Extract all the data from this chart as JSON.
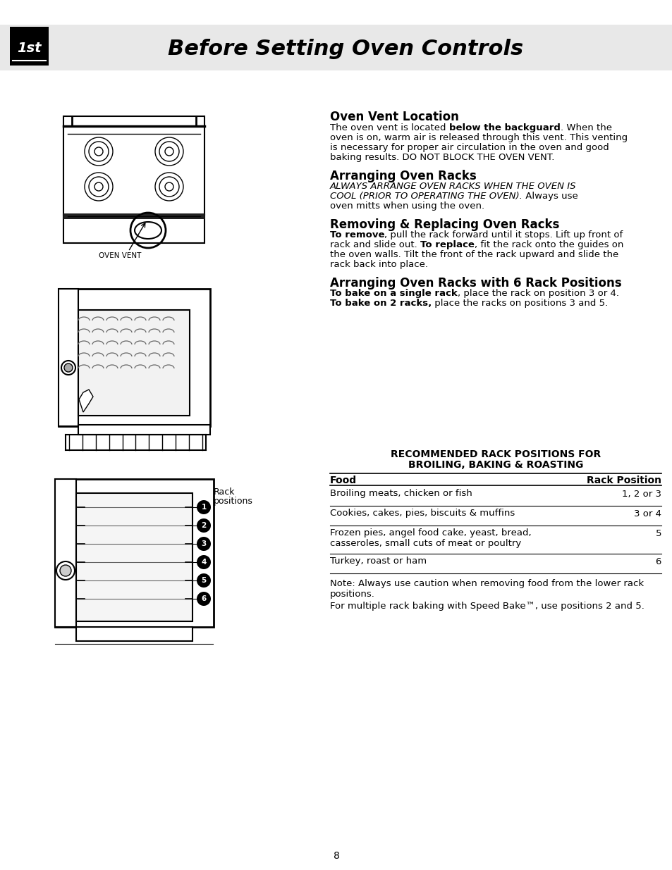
{
  "page_bg": "#ffffff",
  "header_bg": "#e8e8e8",
  "header_title": "Before Setting Oven Controls",
  "icon_text": "1st",
  "page_number": "8",
  "section1_title": "Oven Vent Location",
  "section2_title": "Arranging Oven Racks",
  "section2_italic1": "ALWAYS ARRANGE OVEN RACKS WHEN THE OVEN IS",
  "section2_italic2": "COOL (PRIOR TO OPERATING THE OVEN).",
  "section2_body": " Always use oven mitts when using the oven.",
  "section3_title": "Removing & Replacing Oven Racks",
  "section4_title": "Arranging Oven Racks with 6 Rack Positions",
  "table_title1": "RECOMMENDED RACK POSITIONS FOR",
  "table_title2": "BROILING, BAKING & ROASTING",
  "table_col1": "Food",
  "table_col2": "Rack Position",
  "table_rows": [
    {
      "food": "Broiling meats, chicken or fish",
      "position": "1, 2 or 3"
    },
    {
      "food": "Cookies, cakes, pies, biscuits & muffins",
      "position": "3 or 4"
    },
    {
      "food": "Frozen pies, angel food cake, yeast, bread,\ncasseroles, small cuts of meat or poultry",
      "position": "5"
    },
    {
      "food": "Turkey, roast or ham",
      "position": "6"
    }
  ],
  "note1": "Note: Always use caution when removing food from the lower rack\npositions.",
  "note2": "For multiple rack baking with Speed Bake™, use positions 2 and 5.",
  "oven_vent_label": "OVEN VENT",
  "rack_label1": "Rack",
  "rack_label2": "positions"
}
